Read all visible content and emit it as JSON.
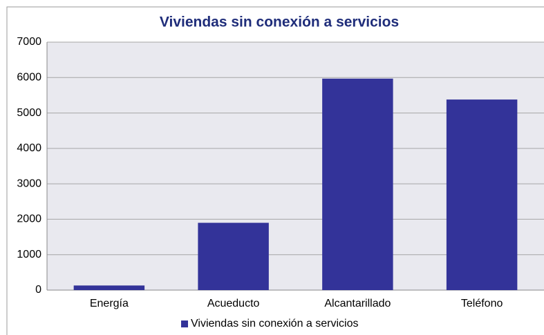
{
  "chart_data": {
    "type": "bar",
    "title": "Viviendas sin conexión a servicios",
    "categories": [
      "Energía",
      "Acueducto",
      "Alcantarillado",
      "Teléfono"
    ],
    "series": [
      {
        "name": "Viviendas sin conexión a servicios",
        "color": "#333399",
        "values": [
          130,
          1900,
          5970,
          5380
        ]
      }
    ],
    "ylim": [
      0,
      7000
    ],
    "yticks": [
      0,
      1000,
      2000,
      3000,
      4000,
      5000,
      6000,
      7000
    ],
    "grid": true,
    "legend": "bottom"
  }
}
